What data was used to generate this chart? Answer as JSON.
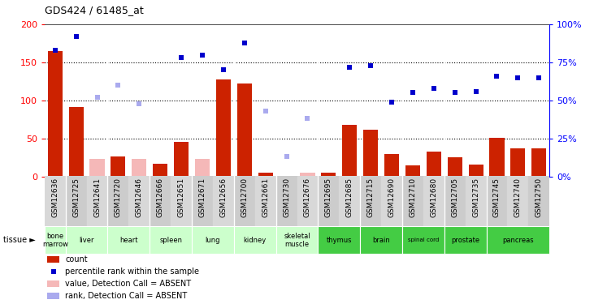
{
  "title": "GDS424 / 61485_at",
  "samples": [
    "GSM12636",
    "GSM12725",
    "GSM12641",
    "GSM12720",
    "GSM12646",
    "GSM12666",
    "GSM12651",
    "GSM12671",
    "GSM12656",
    "GSM12700",
    "GSM12661",
    "GSM12730",
    "GSM12676",
    "GSM12695",
    "GSM12685",
    "GSM12715",
    "GSM12690",
    "GSM12710",
    "GSM12680",
    "GSM12705",
    "GSM12735",
    "GSM12745",
    "GSM12740",
    "GSM12750"
  ],
  "count_values": [
    165,
    91,
    null,
    26,
    null,
    17,
    45,
    null,
    128,
    122,
    5,
    1,
    null,
    5,
    68,
    61,
    29,
    14,
    33,
    25,
    16,
    51,
    37,
    37
  ],
  "count_absent": [
    null,
    null,
    23,
    null,
    23,
    null,
    null,
    23,
    null,
    null,
    null,
    null,
    5,
    null,
    null,
    null,
    null,
    null,
    null,
    null,
    null,
    null,
    null,
    null
  ],
  "rank_values": [
    83,
    92,
    null,
    null,
    null,
    null,
    78,
    80,
    70,
    88,
    null,
    null,
    null,
    null,
    72,
    73,
    49,
    55,
    58,
    55,
    56,
    66,
    65,
    65
  ],
  "rank_absent": [
    null,
    null,
    52,
    60,
    48,
    null,
    null,
    null,
    null,
    null,
    43,
    13,
    38,
    null,
    null,
    null,
    null,
    null,
    null,
    null,
    null,
    null,
    null,
    null
  ],
  "left_ylim": [
    0,
    200
  ],
  "right_ylim": [
    0,
    100
  ],
  "left_yticks": [
    0,
    50,
    100,
    150,
    200
  ],
  "right_yticks": [
    0,
    25,
    50,
    75,
    100
  ],
  "bar_color": "#cc2200",
  "absent_bar_color": "#f5b8b8",
  "rank_color": "#0000cc",
  "rank_absent_color": "#aaaaee",
  "tissue_groups": [
    {
      "name": "bone\nmarrow",
      "cols": [
        0
      ],
      "color": "#ccffcc"
    },
    {
      "name": "liver",
      "cols": [
        1,
        2
      ],
      "color": "#ccffcc"
    },
    {
      "name": "heart",
      "cols": [
        3,
        4
      ],
      "color": "#ccffcc"
    },
    {
      "name": "spleen",
      "cols": [
        5,
        6
      ],
      "color": "#ccffcc"
    },
    {
      "name": "lung",
      "cols": [
        7,
        8
      ],
      "color": "#ccffcc"
    },
    {
      "name": "kidney",
      "cols": [
        9,
        10
      ],
      "color": "#ccffcc"
    },
    {
      "name": "skeletal\nmuscle",
      "cols": [
        11,
        12
      ],
      "color": "#ccffcc"
    },
    {
      "name": "thymus",
      "cols": [
        13,
        14
      ],
      "color": "#44cc44"
    },
    {
      "name": "brain",
      "cols": [
        15,
        16
      ],
      "color": "#44cc44"
    },
    {
      "name": "spinal cord",
      "cols": [
        17,
        18
      ],
      "color": "#44cc44"
    },
    {
      "name": "prostate",
      "cols": [
        19,
        20
      ],
      "color": "#44cc44"
    },
    {
      "name": "pancreas",
      "cols": [
        21,
        22,
        23
      ],
      "color": "#44cc44"
    }
  ]
}
